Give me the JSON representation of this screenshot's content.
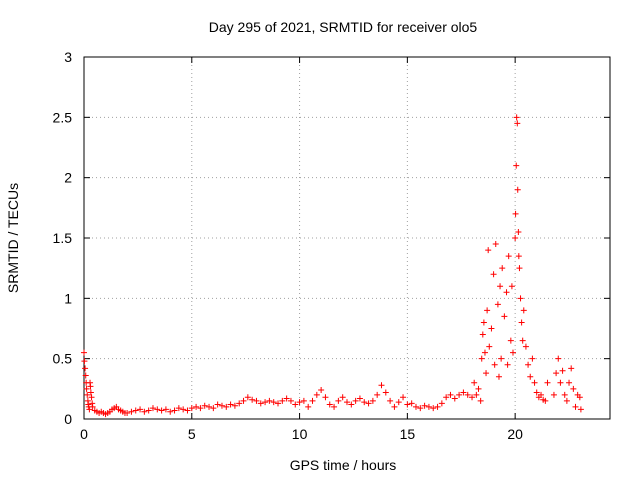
{
  "chart_data": {
    "type": "scatter",
    "title": "Day 295 of 2021, SRMTID for receiver olo5",
    "xlabel": "GPS time / hours",
    "ylabel": "SRMTID / TECUs",
    "xlim": [
      0,
      24.4
    ],
    "ylim": [
      0,
      3
    ],
    "xticks": [
      0,
      5,
      10,
      15,
      20
    ],
    "yticks": [
      0,
      0.5,
      1,
      1.5,
      2,
      2.5,
      3
    ],
    "xtick_labels": [
      "0",
      "5",
      "10",
      "15",
      "20"
    ],
    "ytick_labels": [
      "0",
      "0.5",
      "1",
      "1.5",
      "2",
      "2.5",
      "3"
    ],
    "grid": true,
    "marker": "+",
    "series": [
      {
        "name": "SRMTID",
        "color": "#ff0000",
        "points": [
          [
            0.0,
            0.55
          ],
          [
            0.02,
            0.48
          ],
          [
            0.05,
            0.42
          ],
          [
            0.08,
            0.36
          ],
          [
            0.1,
            0.3
          ],
          [
            0.12,
            0.25
          ],
          [
            0.15,
            0.2
          ],
          [
            0.18,
            0.15
          ],
          [
            0.2,
            0.12
          ],
          [
            0.22,
            0.1
          ],
          [
            0.25,
            0.08
          ],
          [
            0.28,
            0.3
          ],
          [
            0.3,
            0.27
          ],
          [
            0.32,
            0.22
          ],
          [
            0.35,
            0.18
          ],
          [
            0.38,
            0.13
          ],
          [
            0.4,
            0.1
          ],
          [
            0.5,
            0.07
          ],
          [
            0.6,
            0.06
          ],
          [
            0.7,
            0.05
          ],
          [
            0.8,
            0.06
          ],
          [
            0.9,
            0.05
          ],
          [
            1.0,
            0.04
          ],
          [
            1.1,
            0.05
          ],
          [
            1.2,
            0.06
          ],
          [
            1.3,
            0.08
          ],
          [
            1.4,
            0.09
          ],
          [
            1.5,
            0.1
          ],
          [
            1.6,
            0.08
          ],
          [
            1.7,
            0.07
          ],
          [
            1.8,
            0.06
          ],
          [
            1.9,
            0.05
          ],
          [
            2.0,
            0.05
          ],
          [
            2.2,
            0.06
          ],
          [
            2.4,
            0.07
          ],
          [
            2.6,
            0.08
          ],
          [
            2.8,
            0.06
          ],
          [
            3.0,
            0.07
          ],
          [
            3.2,
            0.09
          ],
          [
            3.4,
            0.08
          ],
          [
            3.6,
            0.07
          ],
          [
            3.8,
            0.08
          ],
          [
            4.0,
            0.06
          ],
          [
            4.2,
            0.07
          ],
          [
            4.4,
            0.09
          ],
          [
            4.6,
            0.08
          ],
          [
            4.8,
            0.07
          ],
          [
            5.0,
            0.09
          ],
          [
            5.2,
            0.1
          ],
          [
            5.4,
            0.09
          ],
          [
            5.6,
            0.11
          ],
          [
            5.8,
            0.1
          ],
          [
            6.0,
            0.09
          ],
          [
            6.2,
            0.12
          ],
          [
            6.4,
            0.11
          ],
          [
            6.6,
            0.1
          ],
          [
            6.8,
            0.12
          ],
          [
            7.0,
            0.11
          ],
          [
            7.2,
            0.13
          ],
          [
            7.4,
            0.15
          ],
          [
            7.6,
            0.18
          ],
          [
            7.8,
            0.16
          ],
          [
            8.0,
            0.15
          ],
          [
            8.2,
            0.13
          ],
          [
            8.4,
            0.14
          ],
          [
            8.6,
            0.15
          ],
          [
            8.8,
            0.14
          ],
          [
            9.0,
            0.13
          ],
          [
            9.2,
            0.15
          ],
          [
            9.4,
            0.17
          ],
          [
            9.6,
            0.15
          ],
          [
            9.8,
            0.12
          ],
          [
            10.0,
            0.14
          ],
          [
            10.2,
            0.15
          ],
          [
            10.4,
            0.1
          ],
          [
            10.6,
            0.15
          ],
          [
            10.8,
            0.2
          ],
          [
            11.0,
            0.24
          ],
          [
            11.2,
            0.18
          ],
          [
            11.4,
            0.12
          ],
          [
            11.6,
            0.1
          ],
          [
            11.8,
            0.15
          ],
          [
            12.0,
            0.18
          ],
          [
            12.2,
            0.14
          ],
          [
            12.4,
            0.12
          ],
          [
            12.6,
            0.15
          ],
          [
            12.8,
            0.17
          ],
          [
            13.0,
            0.14
          ],
          [
            13.2,
            0.13
          ],
          [
            13.4,
            0.15
          ],
          [
            13.6,
            0.2
          ],
          [
            13.8,
            0.28
          ],
          [
            14.0,
            0.22
          ],
          [
            14.2,
            0.15
          ],
          [
            14.4,
            0.1
          ],
          [
            14.6,
            0.14
          ],
          [
            14.8,
            0.18
          ],
          [
            15.0,
            0.12
          ],
          [
            15.2,
            0.13
          ],
          [
            15.4,
            0.1
          ],
          [
            15.6,
            0.09
          ],
          [
            15.8,
            0.11
          ],
          [
            16.0,
            0.1
          ],
          [
            16.2,
            0.09
          ],
          [
            16.4,
            0.1
          ],
          [
            16.6,
            0.13
          ],
          [
            16.8,
            0.18
          ],
          [
            17.0,
            0.2
          ],
          [
            17.2,
            0.17
          ],
          [
            17.4,
            0.2
          ],
          [
            17.6,
            0.22
          ],
          [
            17.8,
            0.2
          ],
          [
            18.0,
            0.18
          ],
          [
            18.1,
            0.3
          ],
          [
            18.2,
            0.2
          ],
          [
            18.3,
            0.25
          ],
          [
            18.4,
            0.15
          ],
          [
            18.45,
            0.5
          ],
          [
            18.5,
            0.7
          ],
          [
            18.55,
            0.8
          ],
          [
            18.6,
            0.55
          ],
          [
            18.65,
            0.38
          ],
          [
            18.7,
            0.9
          ],
          [
            18.75,
            1.4
          ],
          [
            18.8,
            0.6
          ],
          [
            18.9,
            0.75
          ],
          [
            19.0,
            1.2
          ],
          [
            19.05,
            0.45
          ],
          [
            19.1,
            1.45
          ],
          [
            19.2,
            0.95
          ],
          [
            19.25,
            0.35
          ],
          [
            19.3,
            1.1
          ],
          [
            19.35,
            0.5
          ],
          [
            19.4,
            1.25
          ],
          [
            19.5,
            0.85
          ],
          [
            19.6,
            1.05
          ],
          [
            19.65,
            0.45
          ],
          [
            19.7,
            1.35
          ],
          [
            19.8,
            0.65
          ],
          [
            19.85,
            1.1
          ],
          [
            19.9,
            0.55
          ],
          [
            20.0,
            1.5
          ],
          [
            20.02,
            1.7
          ],
          [
            20.05,
            2.1
          ],
          [
            20.07,
            2.5
          ],
          [
            20.1,
            2.45
          ],
          [
            20.12,
            1.9
          ],
          [
            20.15,
            1.55
          ],
          [
            20.17,
            1.35
          ],
          [
            20.2,
            1.25
          ],
          [
            20.25,
            1.0
          ],
          [
            20.3,
            0.8
          ],
          [
            20.35,
            0.65
          ],
          [
            20.4,
            0.9
          ],
          [
            20.5,
            0.6
          ],
          [
            20.6,
            0.45
          ],
          [
            20.7,
            0.35
          ],
          [
            20.8,
            0.5
          ],
          [
            20.9,
            0.3
          ],
          [
            21.0,
            0.22
          ],
          [
            21.1,
            0.18
          ],
          [
            21.2,
            0.2
          ],
          [
            21.3,
            0.16
          ],
          [
            21.4,
            0.15
          ],
          [
            21.5,
            0.3
          ],
          [
            21.8,
            0.2
          ],
          [
            21.9,
            0.38
          ],
          [
            22.0,
            0.5
          ],
          [
            22.1,
            0.3
          ],
          [
            22.2,
            0.4
          ],
          [
            22.3,
            0.2
          ],
          [
            22.4,
            0.15
          ],
          [
            22.5,
            0.3
          ],
          [
            22.6,
            0.42
          ],
          [
            22.7,
            0.25
          ],
          [
            22.8,
            0.1
          ],
          [
            22.9,
            0.2
          ],
          [
            23.0,
            0.18
          ],
          [
            23.05,
            0.08
          ]
        ]
      }
    ]
  }
}
